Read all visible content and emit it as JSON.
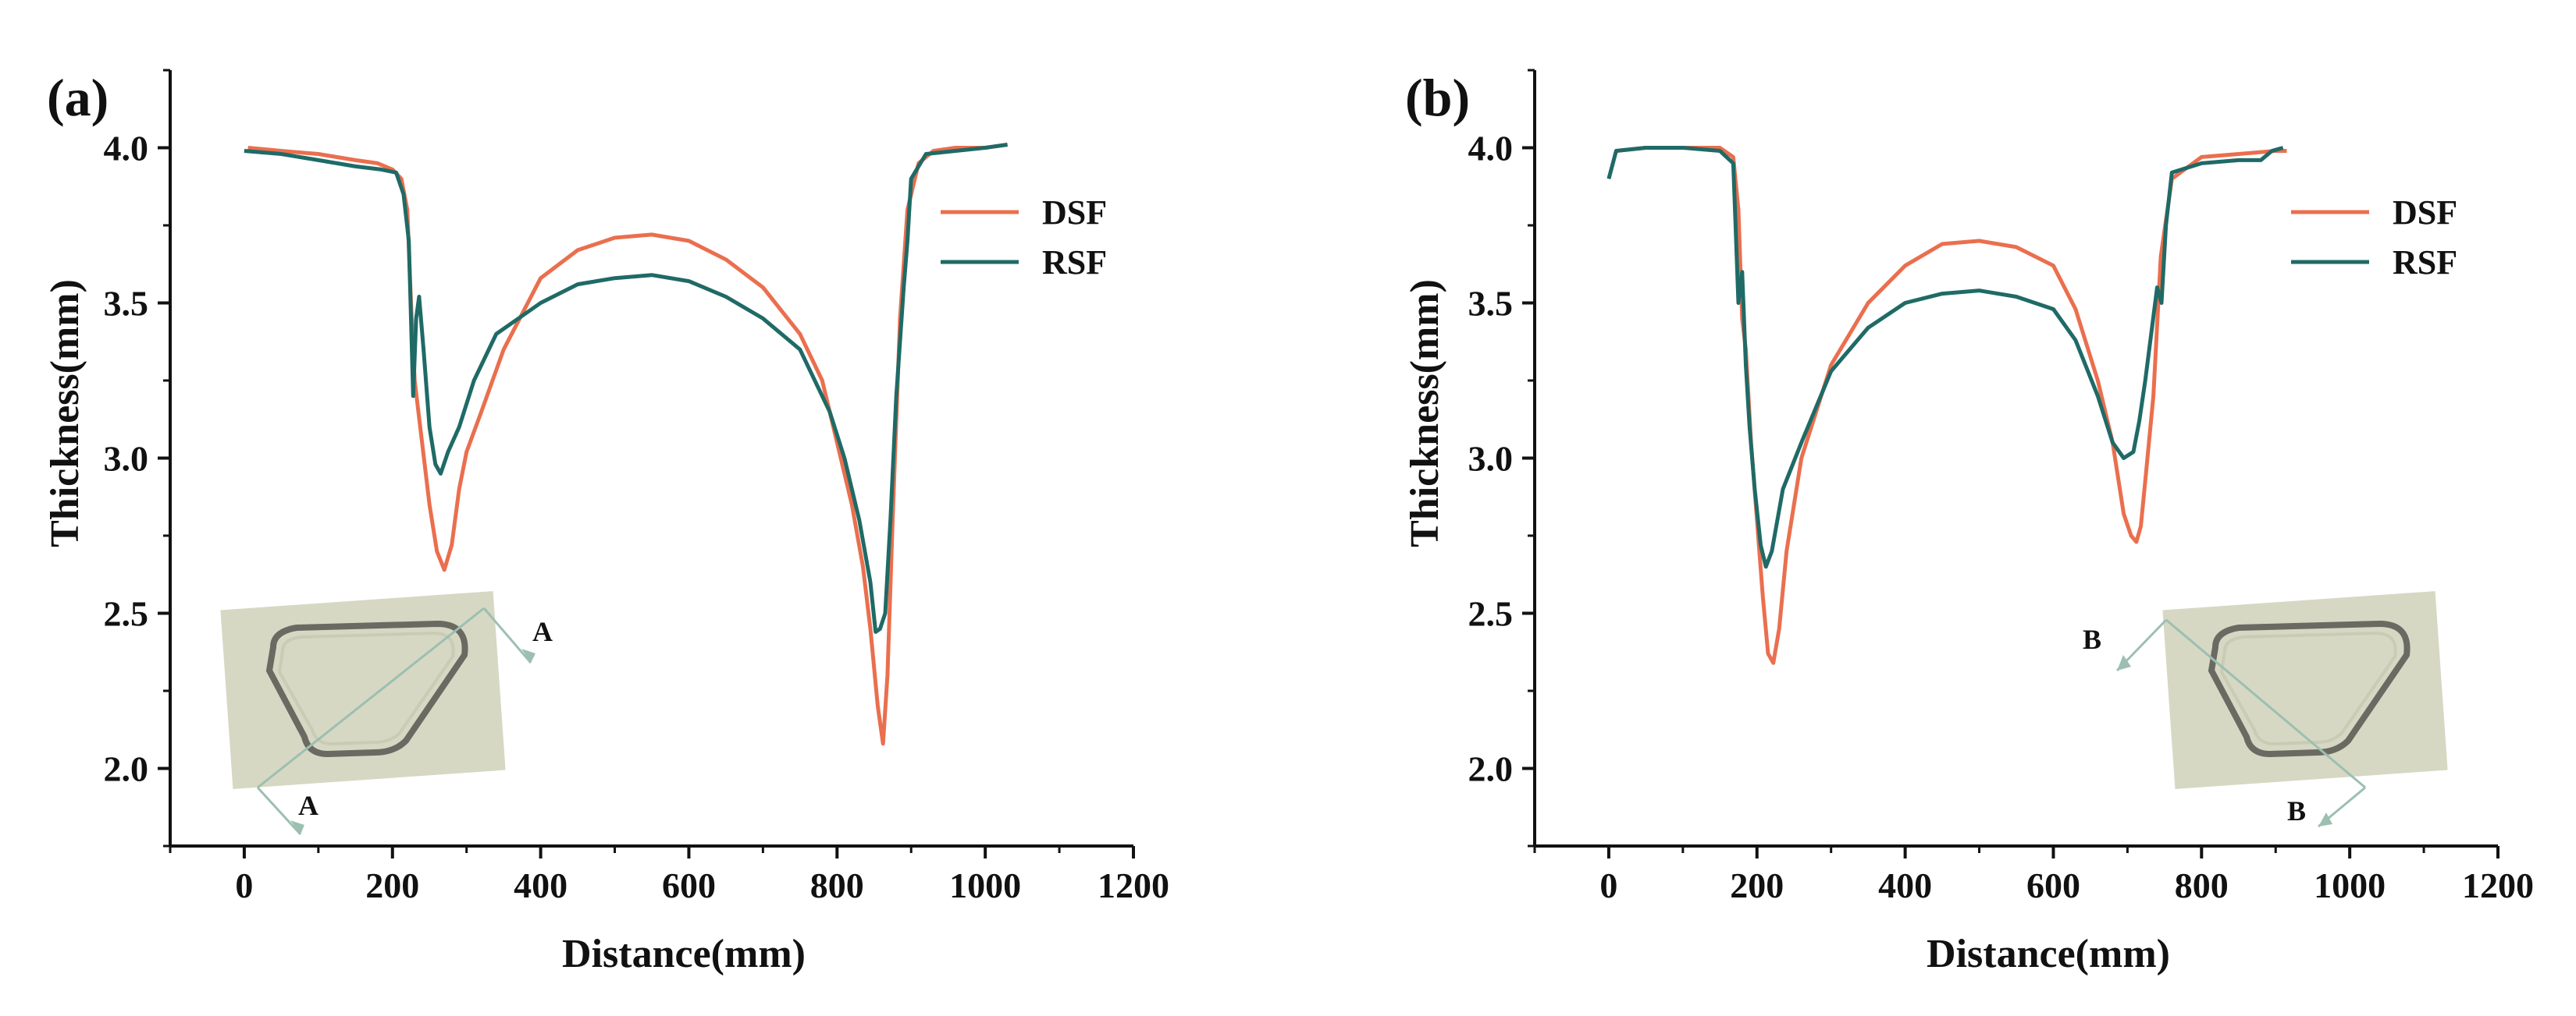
{
  "colors": {
    "DSF": "#ea6f4e",
    "RSF": "#1f6a66",
    "axis": "#111111",
    "arrow": "#9cbfb1"
  },
  "chart_data": [
    {
      "type": "line",
      "panel_label": "(a)",
      "xlabel": "Distance(mm)",
      "ylabel": "Thickness(mm)",
      "xlim": [
        -100,
        1200
      ],
      "ylim": [
        1.75,
        4.25
      ],
      "x_ticks": [
        "0",
        "200",
        "400",
        "600",
        "800",
        "1000",
        "1200"
      ],
      "y_ticks": [
        "2.0",
        "2.5",
        "3.0",
        "3.5",
        "4.0"
      ],
      "legend_position": "top-right",
      "inset_section_label": "A",
      "series": [
        {
          "name": "DSF",
          "x": [
            5,
            50,
            100,
            150,
            180,
            200,
            212,
            220,
            225,
            230,
            240,
            250,
            260,
            270,
            280,
            290,
            300,
            320,
            350,
            400,
            450,
            500,
            550,
            600,
            650,
            700,
            750,
            780,
            800,
            820,
            835,
            845,
            855,
            862,
            868,
            875,
            885,
            895,
            910,
            930,
            960,
            1000,
            1030
          ],
          "y": [
            4.0,
            3.99,
            3.98,
            3.96,
            3.95,
            3.93,
            3.9,
            3.8,
            3.5,
            3.25,
            3.05,
            2.85,
            2.7,
            2.64,
            2.72,
            2.9,
            3.02,
            3.15,
            3.35,
            3.58,
            3.67,
            3.71,
            3.72,
            3.7,
            3.64,
            3.55,
            3.4,
            3.25,
            3.05,
            2.85,
            2.65,
            2.45,
            2.2,
            2.08,
            2.3,
            2.8,
            3.45,
            3.8,
            3.95,
            3.99,
            4.0,
            4.0,
            4.01
          ]
        },
        {
          "name": "RSF",
          "x": [
            0,
            50,
            100,
            150,
            185,
            205,
            215,
            222,
            228,
            232,
            236,
            242,
            250,
            258,
            265,
            275,
            290,
            310,
            340,
            400,
            450,
            500,
            550,
            600,
            650,
            700,
            750,
            790,
            810,
            830,
            845,
            852,
            858,
            865,
            872,
            880,
            890,
            895,
            900,
            920,
            960,
            1000,
            1030
          ],
          "y": [
            3.99,
            3.98,
            3.96,
            3.94,
            3.93,
            3.92,
            3.85,
            3.7,
            3.2,
            3.45,
            3.52,
            3.35,
            3.1,
            2.98,
            2.95,
            3.02,
            3.1,
            3.25,
            3.4,
            3.5,
            3.56,
            3.58,
            3.59,
            3.57,
            3.52,
            3.45,
            3.35,
            3.15,
            3.0,
            2.8,
            2.6,
            2.44,
            2.45,
            2.5,
            2.8,
            3.2,
            3.55,
            3.7,
            3.9,
            3.98,
            3.99,
            4.0,
            4.01
          ]
        }
      ]
    },
    {
      "type": "line",
      "panel_label": "(b)",
      "xlabel": "Distance(mm)",
      "ylabel": "Thickness(mm)",
      "xlim": [
        -100,
        1200
      ],
      "ylim": [
        1.75,
        4.25
      ],
      "x_ticks": [
        "0",
        "200",
        "400",
        "600",
        "800",
        "1000",
        "1200"
      ],
      "y_ticks": [
        "2.0",
        "2.5",
        "3.0",
        "3.5",
        "4.0"
      ],
      "legend_position": "top-right",
      "inset_section_label": "B",
      "series": [
        {
          "name": "DSF",
          "x": [
            10,
            50,
            100,
            150,
            168,
            175,
            180,
            185,
            192,
            200,
            208,
            215,
            222,
            230,
            240,
            260,
            300,
            350,
            400,
            450,
            500,
            550,
            600,
            630,
            660,
            680,
            695,
            705,
            712,
            718,
            725,
            735,
            745,
            760,
            800,
            850,
            900,
            915
          ],
          "y": [
            3.99,
            4.0,
            4.0,
            4.0,
            3.97,
            3.8,
            3.45,
            3.35,
            3.05,
            2.8,
            2.55,
            2.37,
            2.34,
            2.45,
            2.7,
            3.0,
            3.3,
            3.5,
            3.62,
            3.69,
            3.7,
            3.68,
            3.62,
            3.48,
            3.25,
            3.05,
            2.82,
            2.75,
            2.73,
            2.78,
            2.95,
            3.2,
            3.65,
            3.9,
            3.97,
            3.98,
            3.99,
            3.99
          ]
        },
        {
          "name": "RSF",
          "x": [
            0,
            10,
            50,
            100,
            150,
            168,
            175,
            180,
            185,
            190,
            197,
            205,
            212,
            220,
            235,
            260,
            300,
            350,
            400,
            450,
            500,
            550,
            600,
            630,
            660,
            680,
            695,
            708,
            716,
            724,
            732,
            740,
            746,
            752,
            760,
            800,
            850,
            880,
            895,
            910
          ],
          "y": [
            3.9,
            3.99,
            4.0,
            4.0,
            3.99,
            3.95,
            3.5,
            3.6,
            3.3,
            3.1,
            2.9,
            2.72,
            2.65,
            2.7,
            2.9,
            3.05,
            3.28,
            3.42,
            3.5,
            3.53,
            3.54,
            3.52,
            3.48,
            3.38,
            3.2,
            3.05,
            3.0,
            3.02,
            3.12,
            3.25,
            3.4,
            3.55,
            3.5,
            3.75,
            3.92,
            3.95,
            3.96,
            3.96,
            3.99,
            4.0
          ]
        }
      ]
    }
  ]
}
